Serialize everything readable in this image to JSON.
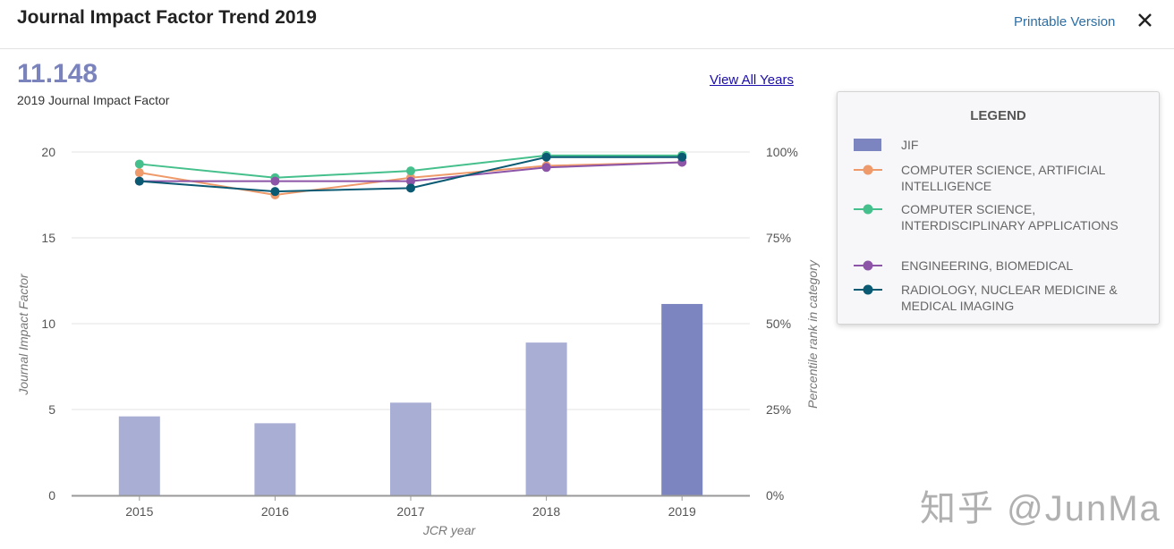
{
  "header": {
    "title": "Journal Impact Factor Trend 2019",
    "printable_label": "Printable Version",
    "close_icon": "close-icon"
  },
  "summary": {
    "jif_value": "11.148",
    "jif_label": "2019 Journal Impact Factor",
    "view_all_label": "View All Years"
  },
  "legend": {
    "title": "LEGEND",
    "items": [
      {
        "label": "JIF",
        "color": "#7c85bf",
        "kind": "bar"
      },
      {
        "label": "COMPUTER SCIENCE, ARTIFICIAL INTELLIGENCE",
        "color": "#ef9a6a",
        "kind": "line"
      },
      {
        "label": "COMPUTER SCIENCE, INTERDISCIPLINARY APPLICATIONS",
        "color": "#45c08c",
        "kind": "line"
      },
      {
        "label": "ENGINEERING, BIOMEDICAL",
        "color": "#8c55a8",
        "kind": "line"
      },
      {
        "label": "RADIOLOGY, NUCLEAR MEDICINE & MEDICAL IMAGING",
        "color": "#0b5a73",
        "kind": "line"
      }
    ]
  },
  "chart_data": {
    "type": "bar",
    "categories": [
      "2015",
      "2016",
      "2017",
      "2018",
      "2019"
    ],
    "jif_values": [
      4.6,
      4.2,
      5.4,
      8.9,
      11.148
    ],
    "bar_color": "#a9aed5",
    "bar_highlight_color": "#7c85bf",
    "left_ticks": [
      "0",
      "5",
      "10",
      "15",
      "20"
    ],
    "ylim": [
      0,
      20
    ],
    "right_ticks": [
      "0%",
      "25%",
      "50%",
      "75%",
      "100%"
    ],
    "right_ylim": [
      0,
      100
    ],
    "xlabel": "JCR year",
    "ylabel": "Journal Impact Factor",
    "ylabel_right": "Percentile rank in category",
    "series": [
      {
        "name": "COMPUTER SCIENCE, ARTIFICIAL INTELLIGENCE",
        "color": "#ef9a6a",
        "values": [
          94,
          87.5,
          92.5,
          96,
          97
        ]
      },
      {
        "name": "COMPUTER SCIENCE, INTERDISCIPLINARY APPLICATIONS",
        "color": "#45c08c",
        "values": [
          96.5,
          92.5,
          94.5,
          99,
          99
        ]
      },
      {
        "name": "ENGINEERING, BIOMEDICAL",
        "color": "#8c55a8",
        "values": [
          91.5,
          91.5,
          91.5,
          95.5,
          97
        ]
      },
      {
        "name": "RADIOLOGY, NUCLEAR MEDICINE & MEDICAL IMAGING",
        "color": "#0b5a73",
        "values": [
          91.5,
          88.5,
          89.5,
          98.5,
          98.5
        ]
      }
    ]
  },
  "watermark": "知乎 @JunMa"
}
